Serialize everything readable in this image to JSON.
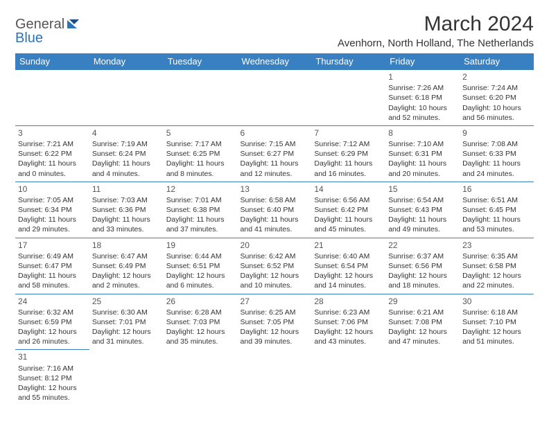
{
  "logo": {
    "general": "General",
    "blue": "Blue"
  },
  "header": {
    "title": "March 2024",
    "location": "Avenhorn, North Holland, The Netherlands"
  },
  "colors": {
    "header_bg": "#3880c2",
    "header_fg": "#ffffff",
    "text": "#333333",
    "border": "#3880c2",
    "logo_gray": "#555555",
    "logo_blue": "#2a73b8"
  },
  "weekdays": [
    "Sunday",
    "Monday",
    "Tuesday",
    "Wednesday",
    "Thursday",
    "Friday",
    "Saturday"
  ],
  "weeks": [
    [
      null,
      null,
      null,
      null,
      null,
      {
        "n": "1",
        "sr": "Sunrise: 7:26 AM",
        "ss": "Sunset: 6:18 PM",
        "d1": "Daylight: 10 hours",
        "d2": "and 52 minutes."
      },
      {
        "n": "2",
        "sr": "Sunrise: 7:24 AM",
        "ss": "Sunset: 6:20 PM",
        "d1": "Daylight: 10 hours",
        "d2": "and 56 minutes."
      }
    ],
    [
      {
        "n": "3",
        "sr": "Sunrise: 7:21 AM",
        "ss": "Sunset: 6:22 PM",
        "d1": "Daylight: 11 hours",
        "d2": "and 0 minutes."
      },
      {
        "n": "4",
        "sr": "Sunrise: 7:19 AM",
        "ss": "Sunset: 6:24 PM",
        "d1": "Daylight: 11 hours",
        "d2": "and 4 minutes."
      },
      {
        "n": "5",
        "sr": "Sunrise: 7:17 AM",
        "ss": "Sunset: 6:25 PM",
        "d1": "Daylight: 11 hours",
        "d2": "and 8 minutes."
      },
      {
        "n": "6",
        "sr": "Sunrise: 7:15 AM",
        "ss": "Sunset: 6:27 PM",
        "d1": "Daylight: 11 hours",
        "d2": "and 12 minutes."
      },
      {
        "n": "7",
        "sr": "Sunrise: 7:12 AM",
        "ss": "Sunset: 6:29 PM",
        "d1": "Daylight: 11 hours",
        "d2": "and 16 minutes."
      },
      {
        "n": "8",
        "sr": "Sunrise: 7:10 AM",
        "ss": "Sunset: 6:31 PM",
        "d1": "Daylight: 11 hours",
        "d2": "and 20 minutes."
      },
      {
        "n": "9",
        "sr": "Sunrise: 7:08 AM",
        "ss": "Sunset: 6:33 PM",
        "d1": "Daylight: 11 hours",
        "d2": "and 24 minutes."
      }
    ],
    [
      {
        "n": "10",
        "sr": "Sunrise: 7:05 AM",
        "ss": "Sunset: 6:34 PM",
        "d1": "Daylight: 11 hours",
        "d2": "and 29 minutes."
      },
      {
        "n": "11",
        "sr": "Sunrise: 7:03 AM",
        "ss": "Sunset: 6:36 PM",
        "d1": "Daylight: 11 hours",
        "d2": "and 33 minutes."
      },
      {
        "n": "12",
        "sr": "Sunrise: 7:01 AM",
        "ss": "Sunset: 6:38 PM",
        "d1": "Daylight: 11 hours",
        "d2": "and 37 minutes."
      },
      {
        "n": "13",
        "sr": "Sunrise: 6:58 AM",
        "ss": "Sunset: 6:40 PM",
        "d1": "Daylight: 11 hours",
        "d2": "and 41 minutes."
      },
      {
        "n": "14",
        "sr": "Sunrise: 6:56 AM",
        "ss": "Sunset: 6:42 PM",
        "d1": "Daylight: 11 hours",
        "d2": "and 45 minutes."
      },
      {
        "n": "15",
        "sr": "Sunrise: 6:54 AM",
        "ss": "Sunset: 6:43 PM",
        "d1": "Daylight: 11 hours",
        "d2": "and 49 minutes."
      },
      {
        "n": "16",
        "sr": "Sunrise: 6:51 AM",
        "ss": "Sunset: 6:45 PM",
        "d1": "Daylight: 11 hours",
        "d2": "and 53 minutes."
      }
    ],
    [
      {
        "n": "17",
        "sr": "Sunrise: 6:49 AM",
        "ss": "Sunset: 6:47 PM",
        "d1": "Daylight: 11 hours",
        "d2": "and 58 minutes."
      },
      {
        "n": "18",
        "sr": "Sunrise: 6:47 AM",
        "ss": "Sunset: 6:49 PM",
        "d1": "Daylight: 12 hours",
        "d2": "and 2 minutes."
      },
      {
        "n": "19",
        "sr": "Sunrise: 6:44 AM",
        "ss": "Sunset: 6:51 PM",
        "d1": "Daylight: 12 hours",
        "d2": "and 6 minutes."
      },
      {
        "n": "20",
        "sr": "Sunrise: 6:42 AM",
        "ss": "Sunset: 6:52 PM",
        "d1": "Daylight: 12 hours",
        "d2": "and 10 minutes."
      },
      {
        "n": "21",
        "sr": "Sunrise: 6:40 AM",
        "ss": "Sunset: 6:54 PM",
        "d1": "Daylight: 12 hours",
        "d2": "and 14 minutes."
      },
      {
        "n": "22",
        "sr": "Sunrise: 6:37 AM",
        "ss": "Sunset: 6:56 PM",
        "d1": "Daylight: 12 hours",
        "d2": "and 18 minutes."
      },
      {
        "n": "23",
        "sr": "Sunrise: 6:35 AM",
        "ss": "Sunset: 6:58 PM",
        "d1": "Daylight: 12 hours",
        "d2": "and 22 minutes."
      }
    ],
    [
      {
        "n": "24",
        "sr": "Sunrise: 6:32 AM",
        "ss": "Sunset: 6:59 PM",
        "d1": "Daylight: 12 hours",
        "d2": "and 26 minutes."
      },
      {
        "n": "25",
        "sr": "Sunrise: 6:30 AM",
        "ss": "Sunset: 7:01 PM",
        "d1": "Daylight: 12 hours",
        "d2": "and 31 minutes."
      },
      {
        "n": "26",
        "sr": "Sunrise: 6:28 AM",
        "ss": "Sunset: 7:03 PM",
        "d1": "Daylight: 12 hours",
        "d2": "and 35 minutes."
      },
      {
        "n": "27",
        "sr": "Sunrise: 6:25 AM",
        "ss": "Sunset: 7:05 PM",
        "d1": "Daylight: 12 hours",
        "d2": "and 39 minutes."
      },
      {
        "n": "28",
        "sr": "Sunrise: 6:23 AM",
        "ss": "Sunset: 7:06 PM",
        "d1": "Daylight: 12 hours",
        "d2": "and 43 minutes."
      },
      {
        "n": "29",
        "sr": "Sunrise: 6:21 AM",
        "ss": "Sunset: 7:08 PM",
        "d1": "Daylight: 12 hours",
        "d2": "and 47 minutes."
      },
      {
        "n": "30",
        "sr": "Sunrise: 6:18 AM",
        "ss": "Sunset: 7:10 PM",
        "d1": "Daylight: 12 hours",
        "d2": "and 51 minutes."
      }
    ],
    [
      {
        "n": "31",
        "sr": "Sunrise: 7:16 AM",
        "ss": "Sunset: 8:12 PM",
        "d1": "Daylight: 12 hours",
        "d2": "and 55 minutes."
      },
      null,
      null,
      null,
      null,
      null,
      null
    ]
  ]
}
